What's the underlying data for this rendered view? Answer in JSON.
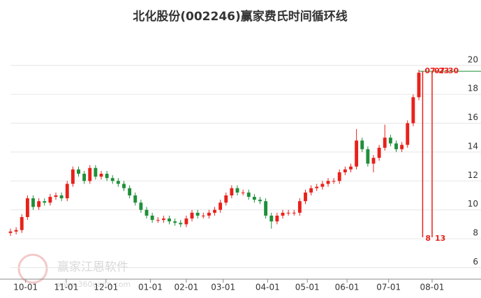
{
  "chart_data": {
    "type": "candlestick",
    "title": "北化股份(002246)赢家费氏时间循环线",
    "x": [
      0,
      3,
      6,
      9,
      12,
      15,
      18,
      21,
      24,
      27,
      30,
      33,
      36,
      39,
      42,
      45,
      48,
      51,
      54,
      57,
      60,
      63,
      66,
      69,
      72,
      75,
      78,
      81,
      84,
      87,
      90,
      93,
      96,
      99,
      102,
      105,
      108,
      111,
      114,
      117,
      120,
      123,
      126,
      129,
      132,
      135,
      138,
      141,
      144,
      147,
      150,
      153,
      156,
      159,
      162,
      165,
      168,
      171,
      174,
      177,
      180,
      183,
      186,
      189,
      192,
      195,
      198,
      201,
      204,
      207,
      210,
      213,
      216
    ],
    "open": [
      8.4,
      8.5,
      8.6,
      9.5,
      10.8,
      10.2,
      10.6,
      10.5,
      10.9,
      11.0,
      10.8,
      11.8,
      12.8,
      12.5,
      12.0,
      12.9,
      12.3,
      12.5,
      12.2,
      12.0,
      11.8,
      11.5,
      11.0,
      10.5,
      10.0,
      9.6,
      9.3,
      9.3,
      9.4,
      9.2,
      9.1,
      9.0,
      9.4,
      9.8,
      9.6,
      9.6,
      9.8,
      10.0,
      10.5,
      11.0,
      11.5,
      11.2,
      11.2,
      10.9,
      10.7,
      10.6,
      9.6,
      9.2,
      9.6,
      9.8,
      9.8,
      9.8,
      10.6,
      11.2,
      11.5,
      11.6,
      11.8,
      12.0,
      12.0,
      12.6,
      12.8,
      13.0,
      14.8,
      14.2,
      13.2,
      13.6,
      14.3,
      15.0,
      14.6,
      14.2,
      14.5,
      16.0,
      17.8
    ],
    "close": [
      8.5,
      8.6,
      9.5,
      10.8,
      10.2,
      10.6,
      10.5,
      10.9,
      11.0,
      10.8,
      11.8,
      12.8,
      12.5,
      12.0,
      12.9,
      12.3,
      12.5,
      12.2,
      12.0,
      11.8,
      11.5,
      11.0,
      10.5,
      10.0,
      9.6,
      9.3,
      9.3,
      9.4,
      9.2,
      9.1,
      9.0,
      9.4,
      9.8,
      9.6,
      9.6,
      9.8,
      10.0,
      10.5,
      11.0,
      11.5,
      11.2,
      11.2,
      10.9,
      10.7,
      10.6,
      9.6,
      9.2,
      9.6,
      9.8,
      9.8,
      9.8,
      10.6,
      11.2,
      11.5,
      11.6,
      11.8,
      12.0,
      12.0,
      12.6,
      12.8,
      13.0,
      14.8,
      14.2,
      13.2,
      13.6,
      14.3,
      15.0,
      14.6,
      14.2,
      14.5,
      16.0,
      17.8,
      19.5
    ],
    "high": [
      8.7,
      8.8,
      9.7,
      11.0,
      11.0,
      10.8,
      10.8,
      11.1,
      11.2,
      11.2,
      12.0,
      13.0,
      13.0,
      12.7,
      13.1,
      13.1,
      12.7,
      12.7,
      12.4,
      12.2,
      12.0,
      11.7,
      11.2,
      10.7,
      10.2,
      9.8,
      9.5,
      9.6,
      9.6,
      9.4,
      9.3,
      9.6,
      10.0,
      10.0,
      9.8,
      10.0,
      10.2,
      10.7,
      11.2,
      11.7,
      11.7,
      11.4,
      11.4,
      11.1,
      10.9,
      10.8,
      9.8,
      9.8,
      10.0,
      10.0,
      10.0,
      10.8,
      11.4,
      11.7,
      11.8,
      12.0,
      12.2,
      12.2,
      12.8,
      13.0,
      13.2,
      15.6,
      15.0,
      14.4,
      13.8,
      14.5,
      15.9,
      15.2,
      14.8,
      14.7,
      16.2,
      18.0,
      19.7
    ],
    "low": [
      8.2,
      8.3,
      8.4,
      9.3,
      10.0,
      10.0,
      10.3,
      10.3,
      10.7,
      10.6,
      10.6,
      11.6,
      12.3,
      11.8,
      11.8,
      12.1,
      12.1,
      12.0,
      11.8,
      11.6,
      11.3,
      10.8,
      10.3,
      9.8,
      9.4,
      9.1,
      9.1,
      9.1,
      9.0,
      8.9,
      8.8,
      8.8,
      9.2,
      9.4,
      9.4,
      9.4,
      9.6,
      9.8,
      10.3,
      10.8,
      11.0,
      11.0,
      10.7,
      10.5,
      10.4,
      9.4,
      8.7,
      9.0,
      9.4,
      9.6,
      9.6,
      9.6,
      10.4,
      11.0,
      11.3,
      11.4,
      11.6,
      11.8,
      11.8,
      12.4,
      12.6,
      12.8,
      14.0,
      13.0,
      12.6,
      13.4,
      14.1,
      14.4,
      14.0,
      14.0,
      14.3,
      15.8,
      17.6
    ],
    "up_color": "#e8211a",
    "down_color": "#1f8f3a",
    "xlim": [
      0,
      240
    ],
    "xticks": [
      {
        "value": 8,
        "label": "10-01"
      },
      {
        "value": 29.5,
        "label": "11-01"
      },
      {
        "value": 50.5,
        "label": "12-01"
      },
      {
        "value": 74,
        "label": "01-01"
      },
      {
        "value": 93,
        "label": "02-01"
      },
      {
        "value": 112.5,
        "label": "03-01"
      },
      {
        "value": 136,
        "label": "04-01"
      },
      {
        "value": 157,
        "label": "05-01"
      },
      {
        "value": 178,
        "label": "06-01"
      },
      {
        "value": 200,
        "label": "07-01"
      },
      {
        "value": 223,
        "label": "08-01"
      }
    ],
    "ylim": [
      5.2,
      22.6
    ],
    "yticks": [
      6,
      8,
      10,
      12,
      14,
      16,
      18,
      20
    ],
    "grid": true,
    "price_line": 19.6,
    "price_line_color": "#1f8f3a",
    "cycles": [
      {
        "x": 218,
        "date": "07-23",
        "days": 8
      },
      {
        "x": 223,
        "date": "07-30",
        "days": 13
      }
    ],
    "cycle_color": "#e8211a",
    "watermark": "赢家江恩软件",
    "watermark_url": "www.360gann.com"
  }
}
